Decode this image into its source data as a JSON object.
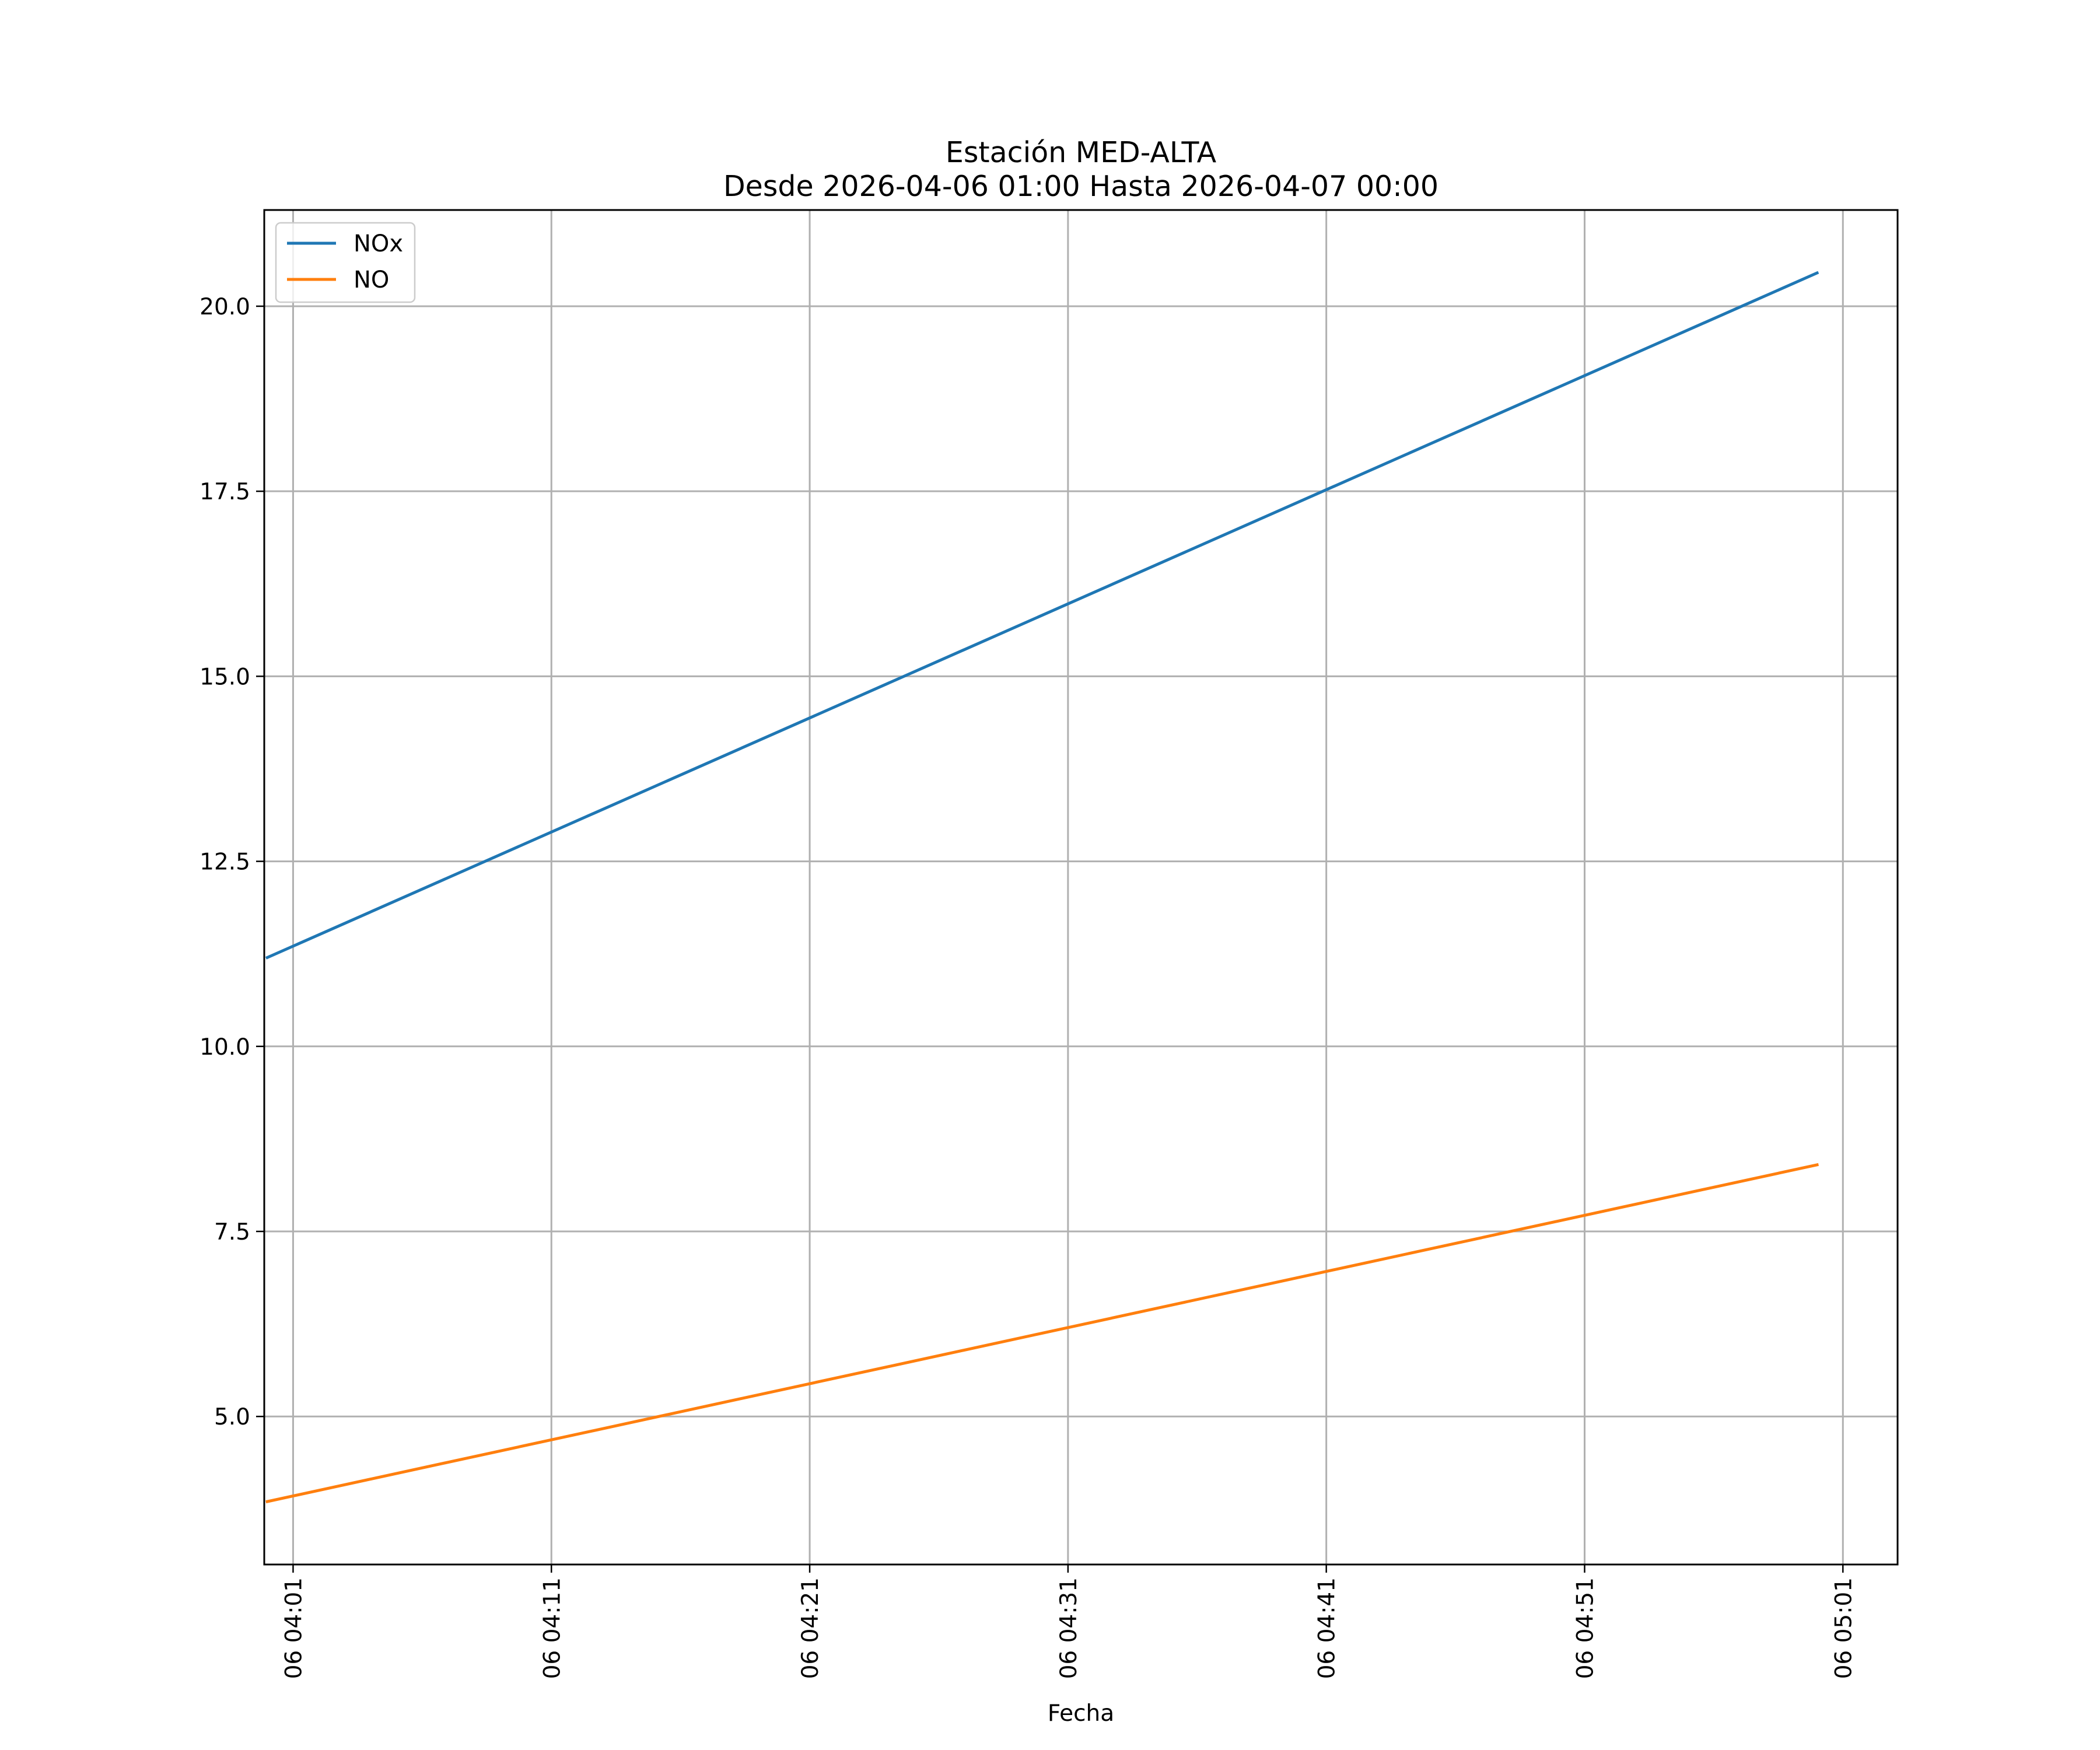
{
  "chart_data": {
    "type": "line",
    "title": "Estación MED-ALTA",
    "subtitle": "Desde 2026-04-06 01:00 Hasta 2026-04-07 00:00",
    "xlabel": "Fecha",
    "ylabel": "",
    "x_tick_labels": [
      "06 04:01",
      "06 04:11",
      "06 04:21",
      "06 04:31",
      "06 04:41",
      "06 04:51",
      "06 05:01"
    ],
    "y_tick_labels": [
      "5.0",
      "7.5",
      "10.0",
      "12.5",
      "15.0",
      "17.5",
      "20.0"
    ],
    "x_range": [
      "2026-04-06 03:59:53",
      "2026-04-06 05:03:07"
    ],
    "ylim": [
      3.0,
      21.3
    ],
    "grid": true,
    "legend": "top-left",
    "series": [
      {
        "name": "NOx",
        "color": "#1f77b4",
        "x": [
          "2026-04-06 04:00",
          "2026-04-06 05:00"
        ],
        "values": [
          11.2,
          20.45
        ]
      },
      {
        "name": "NO",
        "color": "#ff7f0e",
        "x": [
          "2026-04-06 04:00",
          "2026-04-06 05:00"
        ],
        "values": [
          3.85,
          8.4
        ]
      }
    ]
  }
}
